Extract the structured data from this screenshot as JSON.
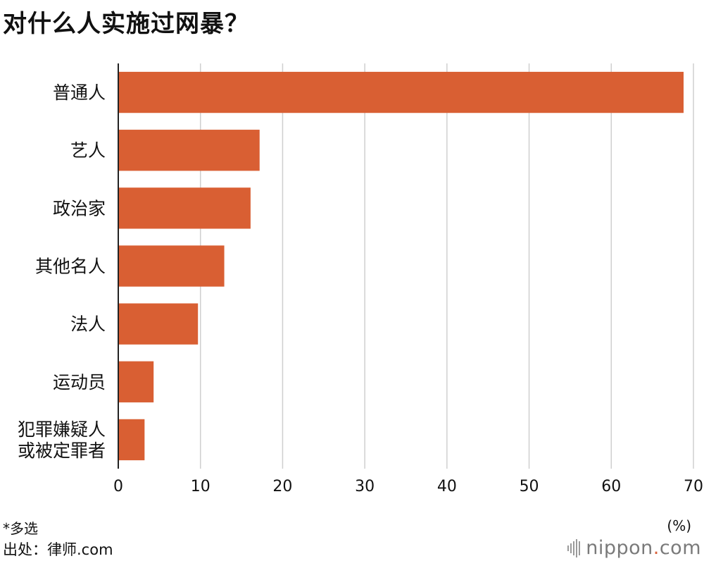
{
  "title": "对什么人实施过网暴？",
  "note": "*多选",
  "source": "出处：律师.com",
  "brand": {
    "name": "nippon",
    "dot": ".",
    "tld": "com",
    "dot_color": "#d9603a"
  },
  "chart_data": {
    "type": "bar",
    "orientation": "horizontal",
    "title": "对什么人实施过网暴？",
    "categories": [
      "普通人",
      "艺人",
      "政治家",
      "其他名人",
      "法人",
      "运动员",
      "犯罪嫌疑人\n或被定罪者"
    ],
    "values": [
      68.8,
      17.2,
      16.1,
      12.9,
      9.7,
      4.3,
      3.2
    ],
    "xlim": [
      0,
      70
    ],
    "xticks": [
      0,
      10,
      20,
      30,
      40,
      50,
      60,
      70
    ],
    "unit": "(%)",
    "bar_color": "#d95f33",
    "grid": true
  }
}
